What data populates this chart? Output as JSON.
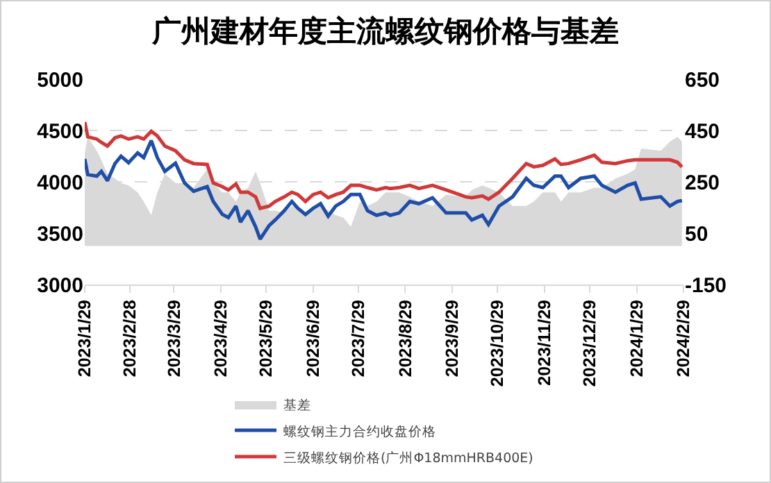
{
  "chart_data": {
    "type": "line",
    "title": "广州建材年度主流螺纹钢价格与基差",
    "x": [
      "2023-01-29",
      "2023-01-31",
      "2023-02-06",
      "2023-02-09",
      "2023-02-13",
      "2023-02-18",
      "2023-02-22",
      "2023-02-27",
      "2023-03-05",
      "2023-03-09",
      "2023-03-14",
      "2023-03-18",
      "2023-03-23",
      "2023-03-30",
      "2023-04-05",
      "2023-04-11",
      "2023-04-20",
      "2023-04-24",
      "2023-04-30",
      "2023-05-04",
      "2023-05-09",
      "2023-05-12",
      "2023-05-17",
      "2023-05-22",
      "2023-05-25",
      "2023-05-31",
      "2023-06-04",
      "2023-06-10",
      "2023-06-15",
      "2023-06-19",
      "2023-06-24",
      "2023-06-29",
      "2023-07-04",
      "2023-07-09",
      "2023-07-14",
      "2023-07-19",
      "2023-07-24",
      "2023-07-30",
      "2023-08-04",
      "2023-08-10",
      "2023-08-16",
      "2023-08-19",
      "2023-08-25",
      "2023-09-01",
      "2023-09-07",
      "2023-09-16",
      "2023-09-25",
      "2023-10-08",
      "2023-10-12",
      "2023-10-19",
      "2023-10-23",
      "2023-10-30",
      "2023-11-08",
      "2023-11-17",
      "2023-11-22",
      "2023-11-28",
      "2023-12-06",
      "2023-12-10",
      "2023-12-15",
      "2023-12-23",
      "2024-01-01",
      "2024-01-06",
      "2024-01-15",
      "2024-01-23",
      "2024-01-28",
      "2024-02-01",
      "2024-02-14",
      "2024-02-20",
      "2024-02-25",
      "2024-02-28"
    ],
    "series": [
      {
        "name": "基差",
        "type": "area",
        "axis": "y2",
        "color": "#d9d9d9",
        "values": [
          362,
          425,
          371,
          335,
          281,
          263,
          245,
          236,
          209,
          173,
          120,
          209,
          281,
          245,
          245,
          227,
          299,
          245,
          209,
          209,
          173,
          209,
          227,
          290,
          245,
          138,
          138,
          129,
          156,
          156,
          129,
          156,
          156,
          138,
          120,
          111,
          75,
          173,
          156,
          173,
          209,
          209,
          209,
          191,
          173,
          156,
          200,
          191,
          218,
          236,
          227,
          209,
          156,
          156,
          173,
          209,
          209,
          173,
          209,
          209,
          227,
          227,
          263,
          281,
          299,
          380,
          371,
          407,
          425,
          407
        ]
      },
      {
        "name": "螺纹钢主力合约收盘价格",
        "color": "#1f4ea8",
        "values": [
          4223,
          4070,
          4056,
          4101,
          4011,
          4177,
          4250,
          4186,
          4281,
          4236,
          4402,
          4236,
          4101,
          4182,
          3989,
          3908,
          3953,
          3809,
          3683,
          3652,
          3764,
          3607,
          3719,
          3562,
          3441,
          3575,
          3629,
          3719,
          3809,
          3742,
          3683,
          3742,
          3787,
          3665,
          3764,
          3809,
          3876,
          3876,
          3719,
          3674,
          3697,
          3674,
          3697,
          3809,
          3787,
          3845,
          3697,
          3697,
          3629,
          3674,
          3584,
          3764,
          3854,
          4034,
          3966,
          3944,
          4056,
          4056,
          3944,
          4034,
          4056,
          3966,
          3899,
          3966,
          3989,
          3831,
          3854,
          3764,
          3809,
          3818
        ]
      },
      {
        "name": "三级螺纹钢价格(广州Φ18mmHRB400E)",
        "color": "#d0393a",
        "values": [
          4582,
          4438,
          4416,
          4384,
          4348,
          4429,
          4447,
          4416,
          4438,
          4416,
          4492,
          4447,
          4348,
          4303,
          4214,
          4178,
          4169,
          3989,
          3953,
          3921,
          3980,
          3899,
          3899,
          3854,
          3742,
          3764,
          3809,
          3854,
          3899,
          3876,
          3809,
          3876,
          3899,
          3845,
          3876,
          3899,
          3966,
          3966,
          3944,
          3921,
          3944,
          3935,
          3944,
          3966,
          3935,
          3966,
          3921,
          3854,
          3845,
          3863,
          3831,
          3899,
          4034,
          4178,
          4146,
          4160,
          4223,
          4169,
          4178,
          4214,
          4259,
          4191,
          4178,
          4205,
          4214,
          4214,
          4214,
          4214,
          4191,
          4146
        ]
      }
    ],
    "xlim": [
      "2023-01-29",
      "2024-02-29"
    ],
    "xticks": [
      {
        "value": "2023-01-29",
        "label": "2023/1/29"
      },
      {
        "value": "2023-02-28",
        "label": "2023/2/28"
      },
      {
        "value": "2023-03-29",
        "label": "2023/3/29"
      },
      {
        "value": "2023-04-29",
        "label": "2023/4/29"
      },
      {
        "value": "2023-05-29",
        "label": "2023/5/29"
      },
      {
        "value": "2023-06-29",
        "label": "2023/6/29"
      },
      {
        "value": "2023-07-29",
        "label": "2023/7/29"
      },
      {
        "value": "2023-08-29",
        "label": "2023/8/29"
      },
      {
        "value": "2023-09-29",
        "label": "2023/9/29"
      },
      {
        "value": "2023-10-29",
        "label": "2023/10/29"
      },
      {
        "value": "2023-11-29",
        "label": "2023/11/29"
      },
      {
        "value": "2023-12-29",
        "label": "2023/12/29"
      },
      {
        "value": "2024-01-29",
        "label": "2024/1/29"
      },
      {
        "value": "2024-02-29",
        "label": "2024/2/29"
      }
    ],
    "ylim": [
      3000,
      5000
    ],
    "yticks": [
      3000,
      3500,
      4000,
      4500,
      5000
    ],
    "y2lim": [
      -150,
      650
    ],
    "y2ticks": [
      -150,
      50,
      250,
      450,
      650
    ],
    "grid": "y",
    "legend": "bottom"
  }
}
